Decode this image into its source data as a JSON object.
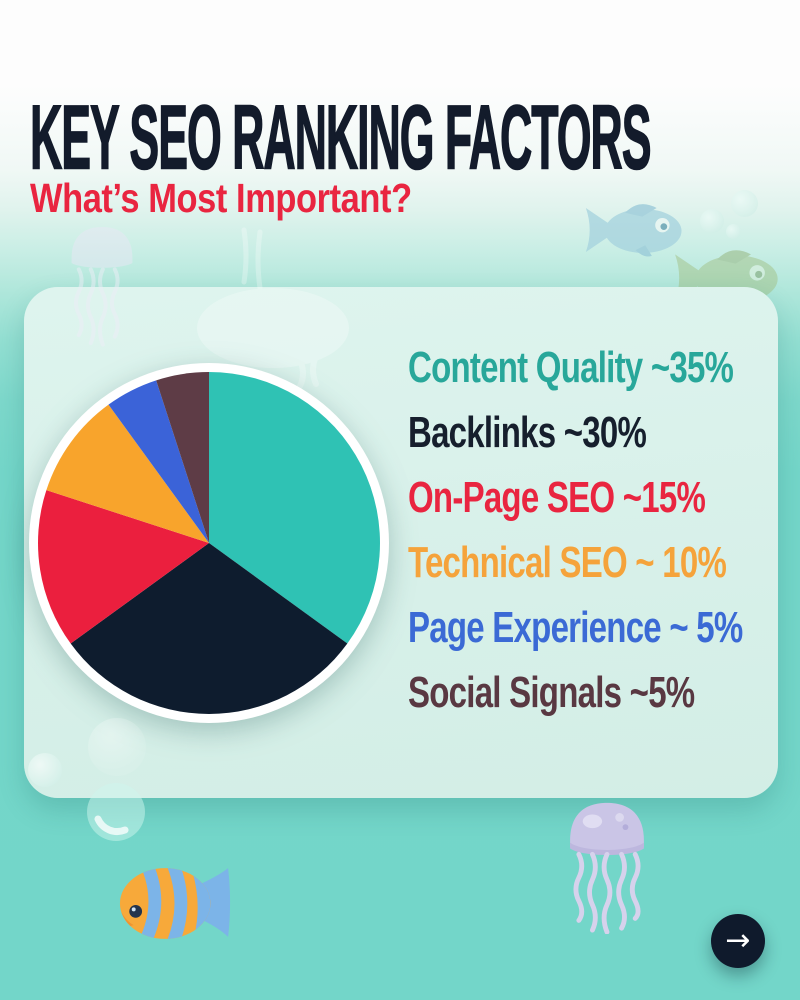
{
  "header": {
    "title": "KEY SEO RANKING FACTORS",
    "subtitle": "What’s Most Important?"
  },
  "chart_data": {
    "type": "pie",
    "title": "Key SEO Ranking Factors",
    "legend_position": "right",
    "start_angle_deg": 0,
    "direction": "clockwise",
    "ring_color": "#ffffff",
    "slices": [
      {
        "id": "content-quality",
        "label": "Content Quality",
        "value": 35,
        "display": "Content Quality ~35%",
        "color": "#2fc2b4",
        "text_color": "#28a79a"
      },
      {
        "id": "backlinks",
        "label": "Backlinks",
        "value": 30,
        "display": "Backlinks ~30%",
        "color": "#0e1c2e",
        "text_color": "#161f2d"
      },
      {
        "id": "on-page-seo",
        "label": "On-Page SEO",
        "value": 15,
        "display": "On-Page SEO ~15%",
        "color": "#eb1f3e",
        "text_color": "#e92540"
      },
      {
        "id": "technical-seo",
        "label": "Technical SEO",
        "value": 10,
        "display": "Technical SEO ~ 10%",
        "color": "#f8a42c",
        "text_color": "#f5a33b"
      },
      {
        "id": "page-experience",
        "label": "Page Experience",
        "value": 5,
        "display": "Page Experience ~ 5%",
        "color": "#3b63d8",
        "text_color": "#3b6ad5"
      },
      {
        "id": "social-signals",
        "label": "Social Signals",
        "value": 5,
        "display": "Social Signals ~5%",
        "color": "#5e3c46",
        "text_color": "#593842"
      }
    ]
  },
  "colors": {
    "background_teal": "#74d6c9",
    "top_band_white": "#fdfdfd",
    "card": "#d9f1ea",
    "title": "#131b2b",
    "subtitle_red": "#e92540",
    "button_navy": "#0f1a2c"
  },
  "footer": {
    "next_glyph": "→"
  },
  "decorations": {
    "icons": [
      "jellyfish-icon",
      "fish-icon",
      "tropical-fish-icon",
      "bubble-icon",
      "arrow-right-icon"
    ]
  }
}
